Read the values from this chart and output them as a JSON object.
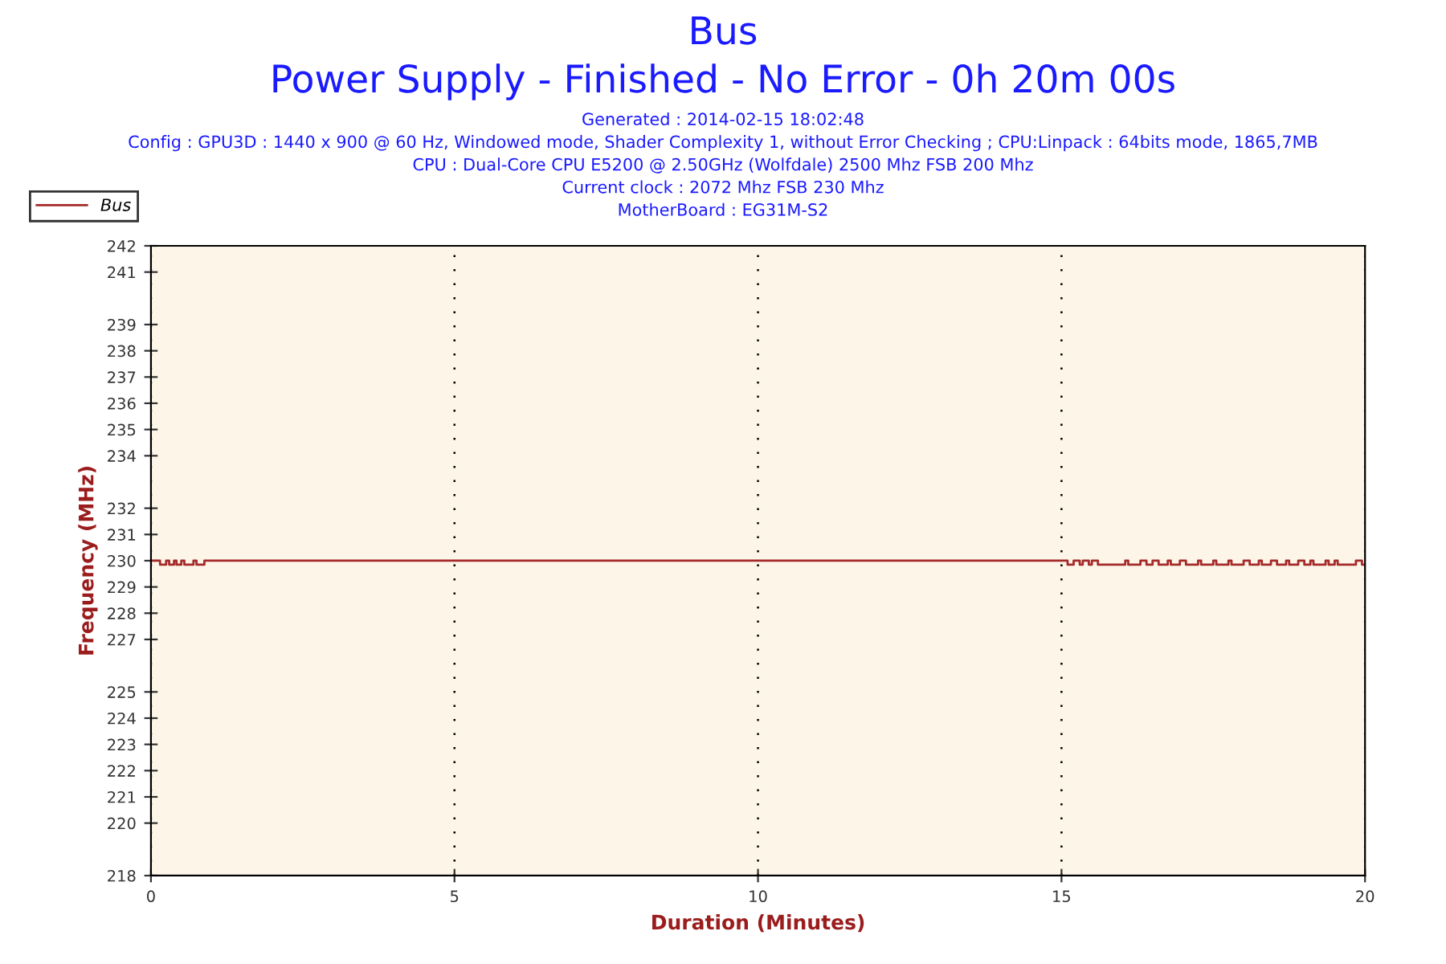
{
  "chart_data": {
    "type": "step",
    "title": "Bus",
    "subtitle": "Power Supply - Finished - No Error - 0h 20m 00s",
    "annotations": [
      "Generated : 2014-02-15 18:02:48",
      "Config : GPU3D : 1440 x 900 @ 60 Hz, Windowed mode, Shader Complexity 1, without Error Checking ; CPU:Linpack : 64bits mode, 1865,7MB",
      "CPU : Dual-Core CPU E5200 @ 2.50GHz (Wolfdale) 2500 Mhz FSB 200 Mhz",
      "Current clock : 2072 Mhz FSB 230 Mhz",
      "MotherBoard : EG31M-S2"
    ],
    "xlabel": "Duration (Minutes)",
    "ylabel": "Frequency (MHz)",
    "series": [
      {
        "name": "Bus",
        "color": "#a52a2a",
        "x": [
          0,
          0.15,
          0.25,
          0.3,
          0.38,
          0.42,
          0.5,
          0.55,
          0.7,
          0.75,
          0.88,
          0.95,
          15.1,
          15.2,
          15.3,
          15.35,
          15.45,
          15.5,
          15.6,
          15.65,
          16.05,
          16.1,
          16.3,
          16.4,
          16.5,
          16.6,
          16.75,
          16.8,
          16.95,
          17.05,
          17.25,
          17.3,
          17.5,
          17.55,
          17.75,
          17.8,
          18.0,
          18.1,
          18.25,
          18.3,
          18.45,
          18.55,
          18.7,
          18.75,
          18.9,
          19.0,
          19.1,
          19.15,
          19.35,
          19.4,
          19.5,
          19.55,
          19.85,
          19.95,
          20
        ],
        "values": [
          230,
          229.85,
          230,
          229.85,
          230,
          229.85,
          230,
          229.85,
          230,
          229.85,
          230,
          230,
          229.85,
          230,
          229.85,
          230,
          229.85,
          230,
          229.85,
          229.85,
          230,
          229.85,
          230,
          229.85,
          230,
          229.85,
          230,
          229.85,
          230,
          229.85,
          230,
          229.85,
          230,
          229.85,
          230,
          229.85,
          230,
          229.85,
          230,
          229.85,
          230,
          229.85,
          230,
          229.85,
          230,
          229.85,
          230,
          229.85,
          230,
          229.85,
          230,
          229.85,
          230,
          229.85,
          229.85
        ]
      }
    ],
    "xlim": [
      0,
      20
    ],
    "xticks": [
      0,
      5,
      10,
      15,
      20
    ],
    "ylim": [
      218,
      242
    ],
    "yticks": [
      218,
      220,
      221,
      222,
      223,
      224,
      225,
      227,
      228,
      229,
      230,
      231,
      232,
      234,
      235,
      236,
      237,
      238,
      239,
      241,
      242
    ],
    "grid": "x",
    "legend": "top left",
    "line_style": "solid",
    "marker": "none"
  }
}
